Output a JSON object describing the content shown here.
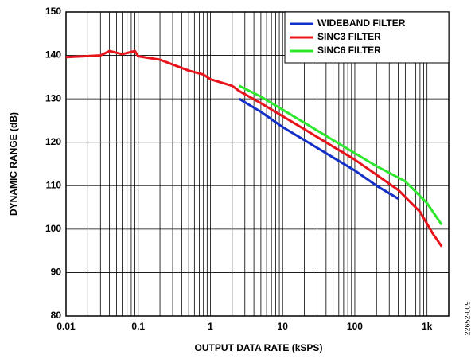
{
  "chart_data": {
    "type": "line",
    "x_label": "OUTPUT DATA RATE (kSPS)",
    "y_label": "DYNAMIC RANGE (dB)",
    "figure_id": "22652-009",
    "xscale": "log",
    "xlim": [
      0.01,
      2000
    ],
    "xticks": [
      0.01,
      0.1,
      1,
      10,
      100,
      {
        "value": 1000,
        "label": "1k"
      }
    ],
    "ylim": [
      80,
      150
    ],
    "yticks": [
      80,
      90,
      100,
      110,
      120,
      130,
      140,
      150
    ],
    "grid": true,
    "minor_grid": true,
    "legend": "upper right",
    "series": [
      {
        "name": "WIDEBAND FILTER",
        "color": "#1530c8",
        "x": [
          2.5,
          5,
          10,
          20,
          50,
          100,
          200,
          400
        ],
        "values": [
          130,
          127,
          123.5,
          120.5,
          116.5,
          113.5,
          110,
          107
        ]
      },
      {
        "name": "SINC3 FILTER",
        "color": "#e8141c",
        "x": [
          0.01,
          0.03,
          0.04,
          0.06,
          0.09,
          0.1,
          0.2,
          0.5,
          0.8,
          1,
          2,
          2.5,
          5,
          10,
          20,
          50,
          100,
          200,
          400,
          800,
          1200,
          1600
        ],
        "values": [
          139.6,
          140,
          141,
          140.3,
          141,
          139.8,
          139,
          136.5,
          135.6,
          134.5,
          133,
          131.8,
          129,
          126,
          123,
          119,
          116,
          112.5,
          109,
          104,
          99,
          96
        ]
      },
      {
        "name": "SINC6 FILTER",
        "color": "#2ee82e",
        "x": [
          2.5,
          5,
          10,
          20,
          50,
          100,
          200,
          500,
          1000,
          1600
        ],
        "values": [
          133,
          130.5,
          127.5,
          124.5,
          120.5,
          117.5,
          114.5,
          111,
          106,
          101
        ]
      }
    ]
  }
}
